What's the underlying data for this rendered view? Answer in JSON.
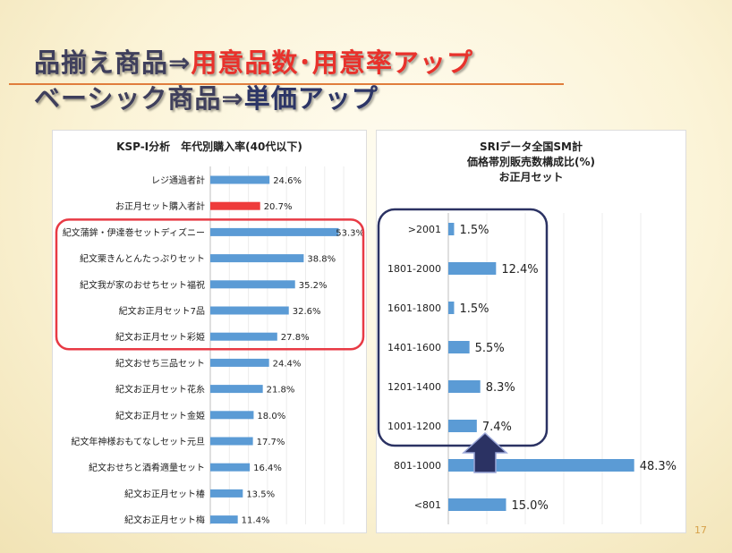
{
  "slide": {
    "title_line1_prefix": "品揃え商品⇒",
    "title_line1_emphasis": "用意品数･用意率アップ",
    "title_line2_prefix": "ベーシック商品⇒",
    "title_line2_emphasis": "単価アップ",
    "page_number": "17"
  },
  "colors": {
    "bar": "#5b9bd5",
    "highlight_bar": "#ee3b3b",
    "left_box": "#e83a44",
    "right_box": "#2b3263",
    "arrow": "#2b3263"
  },
  "chart_data": [
    {
      "type": "bar",
      "orientation": "horizontal",
      "title": "KSP-I分析　年代別購入率(40代以下)",
      "categories": [
        "レジ通過者計",
        "お正月セット購入者計",
        "紀文蒲鉾・伊達巻セットディズニー",
        "紀文栗きんとんたっぷりセット",
        "紀文我が家のおせちセット福祝",
        "紀文お正月セット7品",
        "紀文お正月セット彩姫",
        "紀文おせち三品セット",
        "紀文お正月セット花糸",
        "紀文お正月セット金姫",
        "紀文年神様おもてなしセット元旦",
        "紀文おせちと酒肴適量セット",
        "紀文お正月セット椿",
        "紀文お正月セット梅"
      ],
      "values": [
        24.6,
        20.7,
        53.3,
        38.8,
        35.2,
        32.6,
        27.8,
        24.4,
        21.8,
        18.0,
        17.7,
        16.4,
        13.5,
        11.4
      ],
      "labels": [
        "24.6%",
        "20.7%",
        "53.3%",
        "38.8%",
        "35.2%",
        "32.6%",
        "27.8%",
        "24.4%",
        "21.8%",
        "18.0%",
        "17.7%",
        "16.4%",
        "13.5%",
        "11.4%"
      ],
      "highlight_index": 1,
      "boxed_range": [
        2,
        6
      ],
      "xlim": [
        0,
        55
      ],
      "unit": "%"
    },
    {
      "type": "bar",
      "orientation": "horizontal",
      "title": "SRIデータ全国SM計",
      "subtitle": "価格帯別販売数構成比(%)",
      "subtitle2": "お正月セット",
      "categories": [
        ">2001",
        "1801-2000",
        "1601-1800",
        "1401-1600",
        "1201-1400",
        "1001-1200",
        "801-1000",
        "<801"
      ],
      "values": [
        1.5,
        12.4,
        1.5,
        5.5,
        8.3,
        7.4,
        48.3,
        15.0
      ],
      "labels": [
        "1.5%",
        "12.4%",
        "1.5%",
        "5.5%",
        "8.3%",
        "7.4%",
        "48.3%",
        "15.0%"
      ],
      "boxed_range": [
        0,
        5
      ],
      "arrow_from_index": 6,
      "xlim": [
        0,
        50
      ],
      "unit": "%"
    }
  ]
}
